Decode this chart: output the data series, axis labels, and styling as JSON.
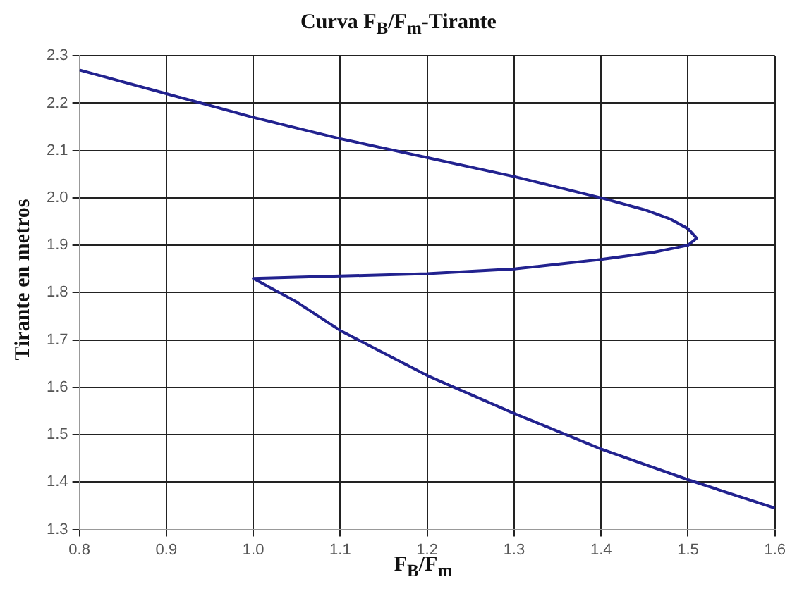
{
  "chart_data": {
    "type": "line",
    "title": "Curva F$_{B}$/F$_{m}$-Tirante",
    "xlabel": "F$_{B}$/F$_{m}$",
    "ylabel": "Tirante en metros",
    "x": [
      0.8,
      0.9,
      1.0,
      1.1,
      1.2,
      1.3,
      1.4,
      1.45,
      1.48,
      1.5,
      1.51,
      1.5,
      1.46,
      1.4,
      1.3,
      1.2,
      1.1,
      1.0,
      1.05,
      1.1,
      1.2,
      1.3,
      1.4,
      1.5,
      1.6
    ],
    "series": [
      {
        "color": "#22228f",
        "values": [
          2.27,
          2.22,
          2.17,
          2.125,
          2.085,
          2.045,
          2.0,
          1.975,
          1.955,
          1.935,
          1.915,
          1.9,
          1.885,
          1.87,
          1.85,
          1.84,
          1.835,
          1.83,
          1.78,
          1.72,
          1.625,
          1.545,
          1.47,
          1.405,
          1.345
        ]
      }
    ],
    "xlim": [
      0.8,
      1.6
    ],
    "ylim": [
      1.3,
      2.3
    ],
    "xticks": [
      0.8,
      0.9,
      {
        "value": 1.0,
        "label": "1.0"
      },
      1.1,
      1.2,
      1.3,
      1.4,
      1.5,
      1.6
    ],
    "yticks": [
      1.3,
      1.4,
      1.5,
      1.6,
      1.7,
      1.8,
      1.9,
      {
        "value": 2.0,
        "label": "2.0"
      },
      2.1,
      2.2,
      2.3
    ],
    "grid": true,
    "marker": "none"
  }
}
